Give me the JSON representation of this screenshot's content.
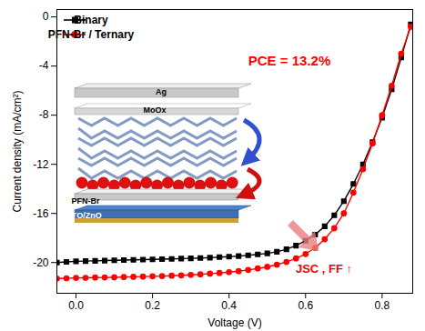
{
  "chart_data": {
    "type": "line",
    "xlabel": "Voltage (V)",
    "ylabel": "Current density (mA/cm²)",
    "x": [
      -0.05,
      -0.025,
      0,
      0.025,
      0.05,
      0.075,
      0.1,
      0.125,
      0.15,
      0.175,
      0.2,
      0.225,
      0.25,
      0.275,
      0.3,
      0.325,
      0.35,
      0.375,
      0.4,
      0.425,
      0.45,
      0.475,
      0.5,
      0.525,
      0.55,
      0.575,
      0.6,
      0.625,
      0.65,
      0.675,
      0.7,
      0.725,
      0.75,
      0.775,
      0.8,
      0.825,
      0.85,
      0.875
    ],
    "series": [
      {
        "name": "Binary",
        "color": "#000000",
        "marker": "square",
        "values": [
          -20.0,
          -19.95,
          -19.9,
          -19.88,
          -19.86,
          -19.84,
          -19.82,
          -19.8,
          -19.78,
          -19.76,
          -19.74,
          -19.72,
          -19.7,
          -19.68,
          -19.66,
          -19.63,
          -19.6,
          -19.56,
          -19.52,
          -19.47,
          -19.41,
          -19.34,
          -19.25,
          -19.12,
          -18.92,
          -18.62,
          -18.22,
          -17.72,
          -17.05,
          -16.15,
          -15.0,
          -13.6,
          -12.0,
          -10.2,
          -8.2,
          -5.9,
          -3.3,
          -0.6
        ]
      },
      {
        "name": "PFN-Br / Ternary",
        "color": "#ff0000",
        "marker": "circle",
        "values": [
          -21.3,
          -21.28,
          -21.25,
          -21.24,
          -21.22,
          -21.21,
          -21.2,
          -21.18,
          -21.16,
          -21.14,
          -21.12,
          -21.1,
          -21.07,
          -21.04,
          -21.0,
          -20.96,
          -20.9,
          -20.85,
          -20.78,
          -20.7,
          -20.6,
          -20.48,
          -20.35,
          -20.17,
          -19.95,
          -19.66,
          -19.3,
          -18.8,
          -18.1,
          -17.2,
          -16.0,
          -14.3,
          -12.4,
          -10.3,
          -8.0,
          -5.6,
          -3.0,
          -0.8
        ]
      }
    ],
    "xlim": [
      -0.05,
      0.88
    ],
    "xticks": [
      {
        "value": 0,
        "label": "0.0"
      },
      0.2,
      0.4,
      0.6,
      0.8
    ],
    "ylim": [
      -22.5,
      0.6
    ],
    "yticks": [
      0,
      -4,
      -8,
      -12,
      -16,
      -20
    ],
    "grid": false,
    "legend": "top-left",
    "annotations": [
      {
        "text": "PCE = 13.2%",
        "color": "#ff0000"
      },
      {
        "text": "JSC , FF ↑",
        "color": "#ff0000"
      }
    ],
    "inset_labels": [
      "Ag",
      "MoOx",
      "PFN-Br",
      "ITO/ZnO"
    ]
  }
}
